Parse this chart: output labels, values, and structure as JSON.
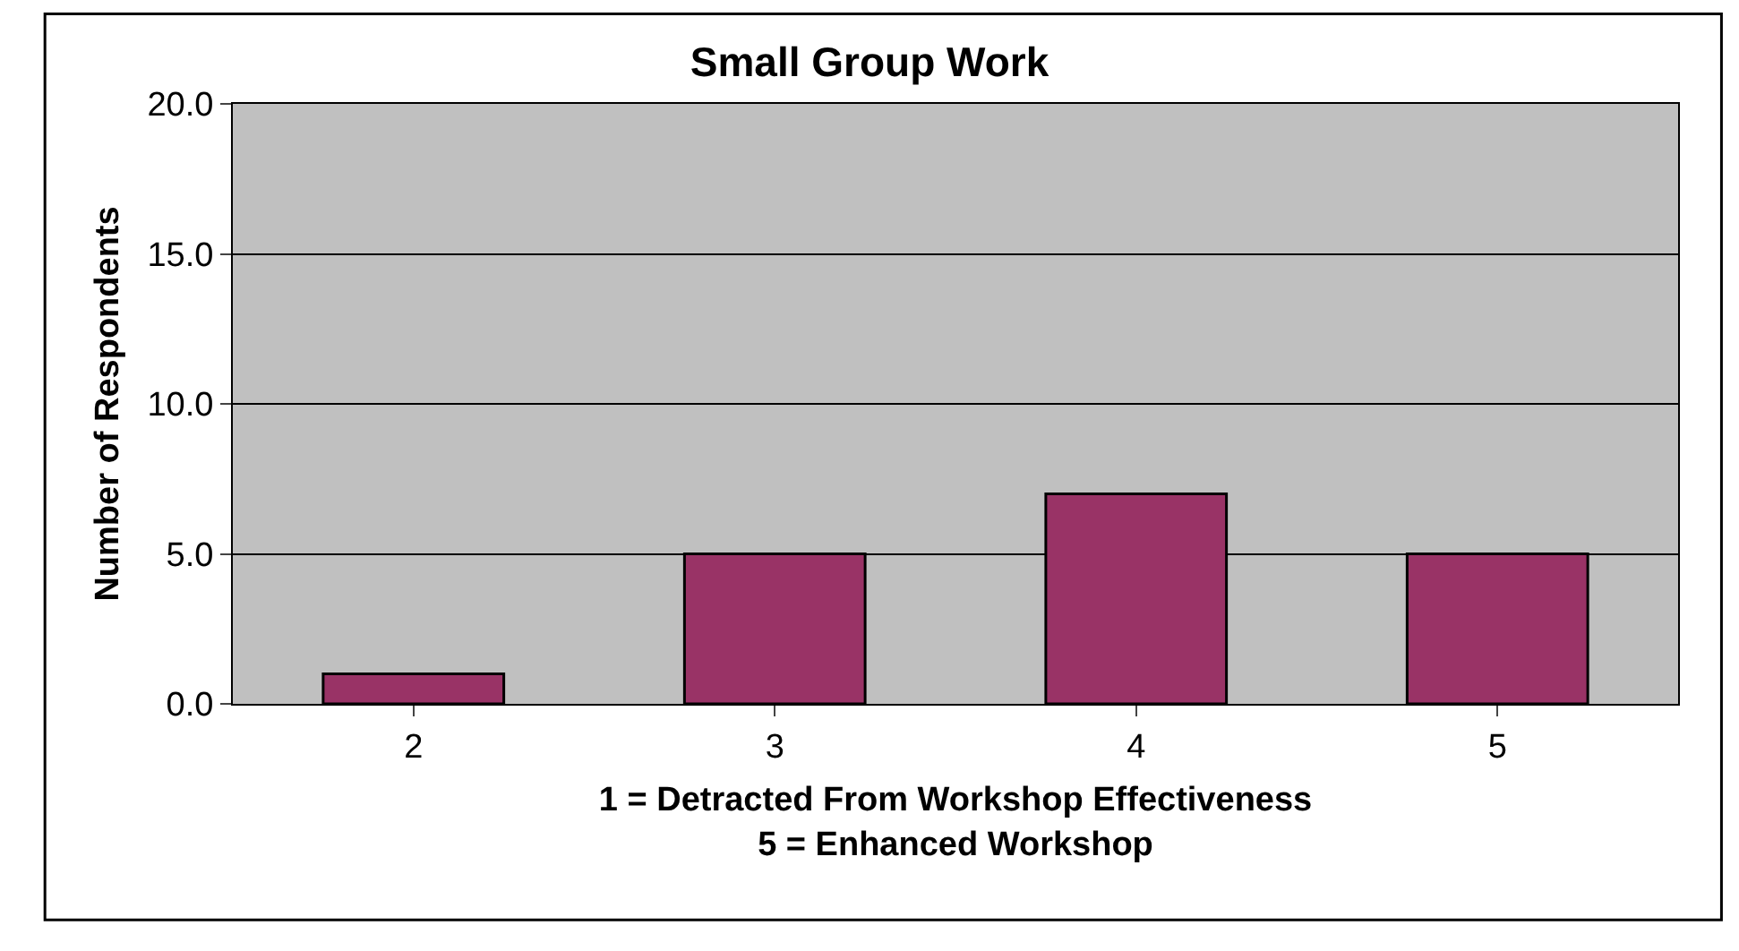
{
  "chart_data": {
    "type": "bar",
    "title": "Small Group Work",
    "xlabel": "1 = Detracted From Workshop Effectiveness\n5 = Enhanced Workshop",
    "ylabel": "Number of Respondents",
    "categories": [
      "2",
      "3",
      "4",
      "5"
    ],
    "values": [
      1,
      5,
      7,
      5
    ],
    "color": "#993366",
    "ylim": [
      0,
      20
    ],
    "yticks": [
      {
        "value": 0,
        "label": "0.0"
      },
      {
        "value": 5,
        "label": "5.0"
      },
      {
        "value": 10,
        "label": "10.0"
      },
      {
        "value": 15,
        "label": "15.0"
      },
      {
        "value": 20,
        "label": "20.0"
      }
    ],
    "grid": "y"
  }
}
